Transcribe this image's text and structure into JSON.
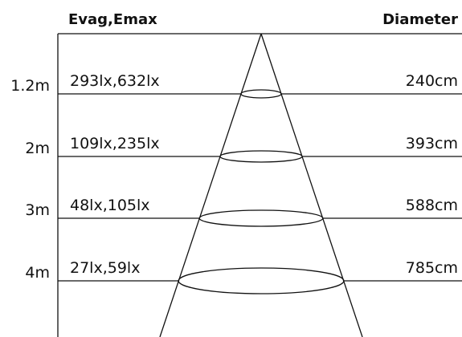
{
  "header": {
    "left": "Evag,Emax",
    "right": "Diameter"
  },
  "rows": [
    {
      "distance": "1.2m",
      "illuminance": "293lx,632lx",
      "diameter": "240cm"
    },
    {
      "distance": "2m",
      "illuminance": "109lx,235lx",
      "diameter": "393cm"
    },
    {
      "distance": "3m",
      "illuminance": "48lx,105lx",
      "diameter": "588cm"
    },
    {
      "distance": "4m",
      "illuminance": "27lx,59lx",
      "diameter": "785cm"
    }
  ]
}
